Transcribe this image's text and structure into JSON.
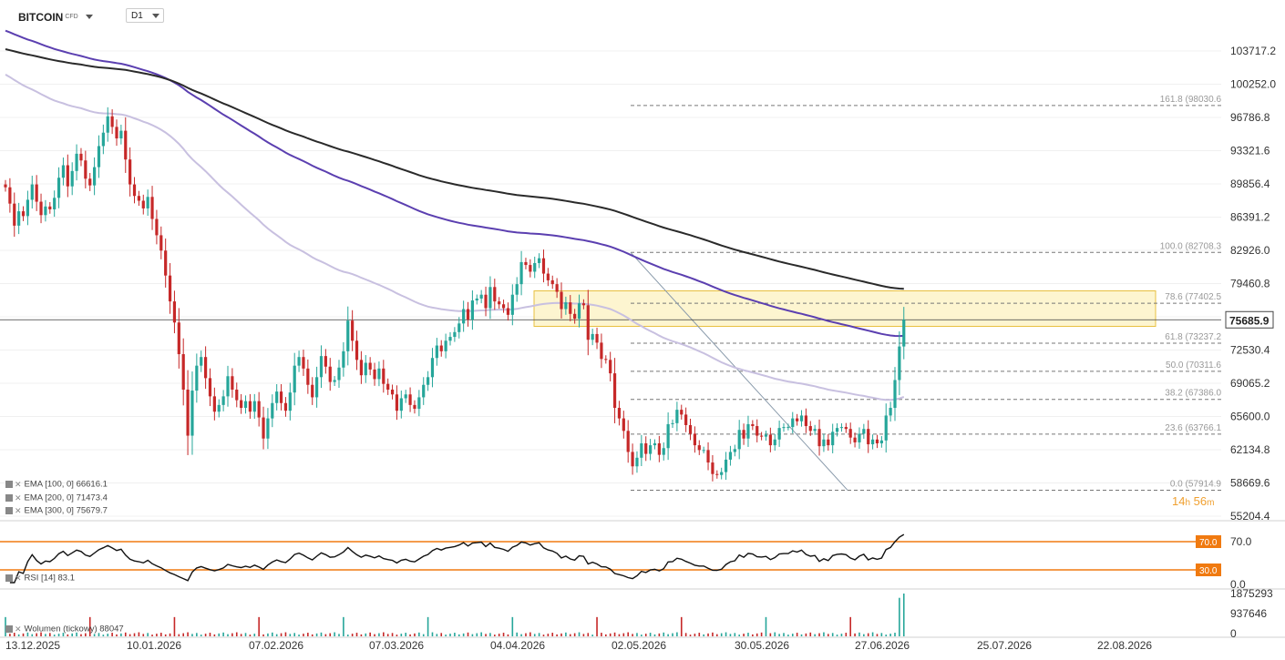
{
  "header": {
    "symbol": "BITCOIN",
    "type": "CFD",
    "timeframe": "D1"
  },
  "timer": {
    "hours": "14",
    "h": "h",
    "minutes": "56",
    "m": "m"
  },
  "legend": {
    "ema100": "EMA [100, 0] 66616.1",
    "ema200": "EMA [200, 0] 71473.4",
    "ema300": "EMA [300, 0] 75679.7",
    "rsi": "RSI [14] 83.1",
    "volume": "Wolumen (tickowy) 88047"
  },
  "colors": {
    "up": "#26a69a",
    "down": "#c62828",
    "ema100": "#c8c0e0",
    "ema200": "#5b3fb0",
    "ema300": "#2a2a2a",
    "zone": "#fdf3c8",
    "zoneBorder": "#e8c040",
    "rsiLines": "#f07a10",
    "lastPrice": "#3a3a3a"
  },
  "chart_data": {
    "type": "candlestick",
    "price_axis": [
      "103717.2",
      "100252.0",
      "96786.8",
      "93321.6",
      "89856.4",
      "86391.2",
      "82926.0",
      "79460.8",
      "75995.6",
      "72530.4",
      "69065.2",
      "65600.0",
      "62134.8",
      "58669.6",
      "55204.4"
    ],
    "last_price": "75685.9",
    "date_labels": [
      "13.12.2025",
      "10.01.2026",
      "07.02.2026",
      "07.03.2026",
      "04.04.2026",
      "02.05.2026",
      "30.05.2026",
      "27.06.2026",
      "25.07.2026",
      "22.08.2026"
    ],
    "closes": [
      89500,
      87800,
      85500,
      87000,
      86500,
      88200,
      89800,
      88000,
      86600,
      87500,
      87200,
      88400,
      90500,
      91800,
      89600,
      91200,
      93000,
      92300,
      90400,
      89700,
      91600,
      93800,
      95200,
      96900,
      95800,
      94600,
      95400,
      92400,
      89800,
      88600,
      88100,
      87300,
      88500,
      86200,
      84500,
      82900,
      80300,
      77600,
      75400,
      72100,
      68400,
      63600,
      68300,
      70900,
      71800,
      69600,
      67700,
      66100,
      66800,
      67700,
      69800,
      68400,
      67300,
      66500,
      67200,
      66100,
      67200,
      65500,
      63300,
      65400,
      67000,
      68200,
      67000,
      66200,
      68100,
      70900,
      71800,
      70600,
      68900,
      67600,
      69700,
      71900,
      70800,
      69200,
      69400,
      70700,
      72400,
      75600,
      73500,
      71500,
      69900,
      71200,
      70500,
      69500,
      70600,
      69000,
      68400,
      67900,
      66200,
      67500,
      67900,
      66800,
      66400,
      67600,
      68900,
      69700,
      71700,
      73000,
      72400,
      73500,
      73900,
      74400,
      75300,
      76800,
      75700,
      77700,
      77900,
      78300,
      76900,
      79100,
      77600,
      77300,
      76900,
      76200,
      78300,
      79400,
      81700,
      81400,
      80700,
      81600,
      82100,
      80500,
      79800,
      79400,
      78600,
      76800,
      77500,
      76300,
      75800,
      77400,
      77200,
      73600,
      74200,
      73300,
      71600,
      71500,
      70100,
      66500,
      65400,
      64100,
      61900,
      60400,
      61300,
      62800,
      61700,
      62600,
      62800,
      61600,
      62300,
      64800,
      64900,
      66300,
      65800,
      64700,
      63800,
      62600,
      62100,
      62100,
      60800,
      59600,
      59500,
      59800,
      61100,
      61900,
      62200,
      64200,
      63300,
      64800,
      64600,
      63600,
      63500,
      63700,
      62600,
      63200,
      64400,
      64500,
      64500,
      65400,
      65100,
      65700,
      64600,
      64100,
      64300,
      62500,
      63200,
      62600,
      64000,
      64400,
      64500,
      64300,
      63400,
      62900,
      63800,
      64300,
      62700,
      63200,
      62800,
      63100,
      65700,
      66500,
      69400,
      72900,
      75700
    ],
    "series_notes": [
      "EMA 100",
      "EMA 200",
      "EMA 300"
    ],
    "fibonacci": [
      {
        "label": "161.8 (98030.6",
        "value": 98030.6
      },
      {
        "label": "100.0 (82708.3",
        "value": 82708.3
      },
      {
        "label": "78.6 (77402.5",
        "value": 77402.5
      },
      {
        "label": "61.8 (73237.2",
        "value": 73237.2
      },
      {
        "label": "50.0 (70311.6",
        "value": 70311.6
      },
      {
        "label": "38.2 (67386.0",
        "value": 67386.0
      },
      {
        "label": "23.6 (63766.1",
        "value": 63766.1
      },
      {
        "label": "0.0 (57914.9",
        "value": 57914.9
      }
    ],
    "zone": {
      "top": 78700,
      "bottom": 75000
    },
    "rsi": {
      "levels": [
        70,
        30
      ],
      "level_labels": [
        "70.0",
        "30.0"
      ],
      "axis_labels": [
        "70.0",
        "0.0"
      ],
      "last": 83.1
    },
    "volume": {
      "axis_labels": [
        "1875293",
        "937646",
        "0"
      ],
      "max": 1875293,
      "last": 88047
    }
  }
}
